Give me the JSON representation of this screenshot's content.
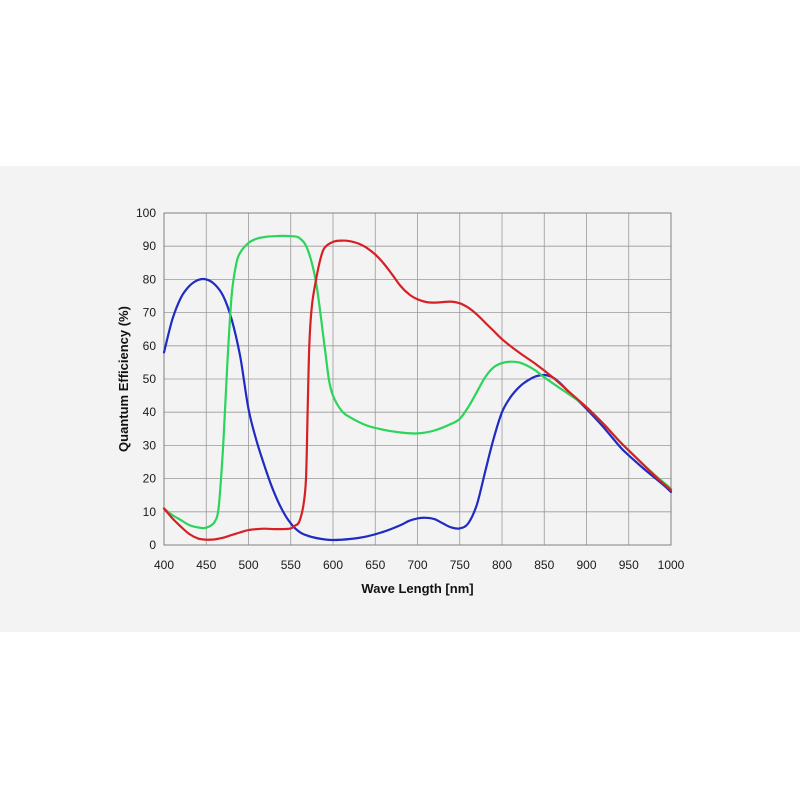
{
  "chart_data": {
    "type": "line",
    "title": "",
    "xlabel": "Wave Length [nm]",
    "ylabel": "Quantum Efficiency  (%)",
    "xlim": [
      400,
      1000
    ],
    "ylim": [
      0,
      100
    ],
    "xticks": [
      400,
      450,
      500,
      550,
      600,
      650,
      700,
      750,
      800,
      850,
      900,
      950,
      1000
    ],
    "yticks": [
      0,
      10,
      20,
      30,
      40,
      50,
      60,
      70,
      80,
      90,
      100
    ],
    "grid": true,
    "legend": "none",
    "series": [
      {
        "color": "#1f2bc2",
        "points": [
          [
            400,
            58
          ],
          [
            410,
            68
          ],
          [
            420,
            74.5
          ],
          [
            430,
            78
          ],
          [
            440,
            79.8
          ],
          [
            450,
            80
          ],
          [
            460,
            78.5
          ],
          [
            470,
            75
          ],
          [
            480,
            68
          ],
          [
            490,
            57
          ],
          [
            500,
            41
          ],
          [
            510,
            31
          ],
          [
            520,
            23
          ],
          [
            530,
            16
          ],
          [
            540,
            10.5
          ],
          [
            550,
            6.5
          ],
          [
            560,
            4
          ],
          [
            570,
            2.8
          ],
          [
            580,
            2.1
          ],
          [
            590,
            1.7
          ],
          [
            600,
            1.5
          ],
          [
            620,
            1.8
          ],
          [
            640,
            2.6
          ],
          [
            660,
            4
          ],
          [
            680,
            6
          ],
          [
            690,
            7.3
          ],
          [
            700,
            8
          ],
          [
            710,
            8.2
          ],
          [
            720,
            7.8
          ],
          [
            730,
            6.5
          ],
          [
            740,
            5.3
          ],
          [
            750,
            5
          ],
          [
            760,
            6.5
          ],
          [
            770,
            12
          ],
          [
            780,
            22
          ],
          [
            790,
            32
          ],
          [
            800,
            40
          ],
          [
            810,
            44.5
          ],
          [
            820,
            47.5
          ],
          [
            830,
            49.5
          ],
          [
            840,
            50.8
          ],
          [
            850,
            51.2
          ],
          [
            860,
            50.5
          ],
          [
            870,
            48.5
          ],
          [
            880,
            45.8
          ],
          [
            890,
            43.5
          ],
          [
            900,
            41
          ],
          [
            920,
            35.5
          ],
          [
            940,
            29.5
          ],
          [
            950,
            27
          ],
          [
            970,
            22.5
          ],
          [
            990,
            18.3
          ],
          [
            1000,
            16
          ]
        ]
      },
      {
        "color": "#2bd45a",
        "points": [
          [
            400,
            11
          ],
          [
            410,
            9
          ],
          [
            420,
            7.5
          ],
          [
            430,
            6
          ],
          [
            440,
            5.3
          ],
          [
            450,
            5.2
          ],
          [
            460,
            7
          ],
          [
            465,
            12
          ],
          [
            470,
            30
          ],
          [
            475,
            55
          ],
          [
            480,
            75
          ],
          [
            485,
            84
          ],
          [
            490,
            88
          ],
          [
            500,
            91
          ],
          [
            510,
            92.3
          ],
          [
            520,
            92.8
          ],
          [
            530,
            93
          ],
          [
            540,
            93.1
          ],
          [
            550,
            93
          ],
          [
            560,
            92.5
          ],
          [
            570,
            89
          ],
          [
            580,
            79
          ],
          [
            590,
            60
          ],
          [
            595,
            50
          ],
          [
            600,
            45
          ],
          [
            610,
            40.5
          ],
          [
            620,
            38.5
          ],
          [
            640,
            36
          ],
          [
            660,
            34.7
          ],
          [
            680,
            33.9
          ],
          [
            700,
            33.6
          ],
          [
            720,
            34.5
          ],
          [
            740,
            36.5
          ],
          [
            750,
            38
          ],
          [
            760,
            41.5
          ],
          [
            770,
            46
          ],
          [
            780,
            50.5
          ],
          [
            790,
            53.5
          ],
          [
            800,
            54.8
          ],
          [
            810,
            55.2
          ],
          [
            820,
            55
          ],
          [
            830,
            54
          ],
          [
            840,
            52.5
          ],
          [
            850,
            50.5
          ],
          [
            870,
            47
          ],
          [
            890,
            43.5
          ],
          [
            900,
            41.5
          ],
          [
            920,
            36.5
          ],
          [
            940,
            31
          ],
          [
            960,
            26
          ],
          [
            980,
            21.3
          ],
          [
            1000,
            17
          ]
        ]
      },
      {
        "color": "#d62024",
        "points": [
          [
            400,
            11
          ],
          [
            410,
            8
          ],
          [
            420,
            5.5
          ],
          [
            430,
            3.3
          ],
          [
            440,
            2
          ],
          [
            450,
            1.6
          ],
          [
            460,
            1.7
          ],
          [
            470,
            2.2
          ],
          [
            480,
            3
          ],
          [
            490,
            3.8
          ],
          [
            500,
            4.5
          ],
          [
            510,
            4.8
          ],
          [
            520,
            4.9
          ],
          [
            530,
            4.8
          ],
          [
            540,
            4.8
          ],
          [
            550,
            5
          ],
          [
            555,
            5.8
          ],
          [
            560,
            7
          ],
          [
            565,
            12
          ],
          [
            568,
            20
          ],
          [
            570,
            40
          ],
          [
            572,
            60
          ],
          [
            575,
            72
          ],
          [
            580,
            80
          ],
          [
            585,
            86
          ],
          [
            590,
            89.5
          ],
          [
            600,
            91.3
          ],
          [
            610,
            91.7
          ],
          [
            620,
            91.5
          ],
          [
            630,
            90.8
          ],
          [
            640,
            89.5
          ],
          [
            650,
            87.5
          ],
          [
            660,
            84.8
          ],
          [
            670,
            81.5
          ],
          [
            680,
            78
          ],
          [
            690,
            75.5
          ],
          [
            700,
            74
          ],
          [
            710,
            73.2
          ],
          [
            720,
            73
          ],
          [
            740,
            73.3
          ],
          [
            750,
            72.8
          ],
          [
            760,
            71.5
          ],
          [
            770,
            69.5
          ],
          [
            780,
            67
          ],
          [
            790,
            64.5
          ],
          [
            800,
            62
          ],
          [
            820,
            58
          ],
          [
            840,
            54.5
          ],
          [
            860,
            50.5
          ],
          [
            880,
            46
          ],
          [
            900,
            41.5
          ],
          [
            920,
            36.5
          ],
          [
            940,
            31
          ],
          [
            960,
            26
          ],
          [
            980,
            21
          ],
          [
            1000,
            16.5
          ]
        ]
      }
    ]
  }
}
